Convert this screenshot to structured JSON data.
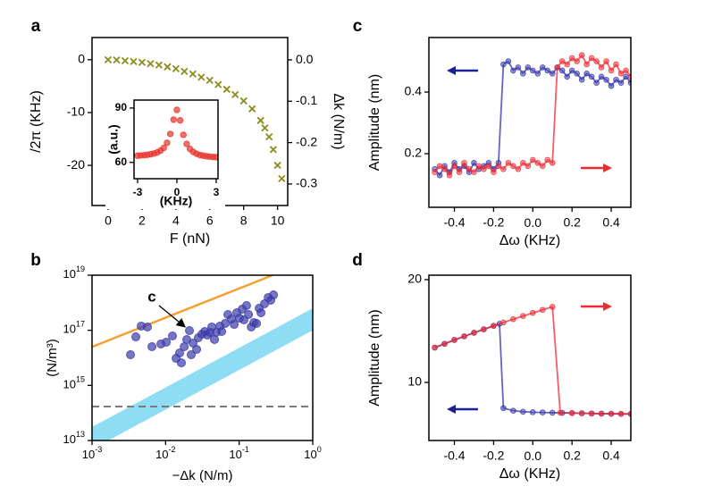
{
  "chart_data": [
    {
      "type": "scatter",
      "label": "a",
      "xlabel": "F (nN)",
      "ylabel": "/2π (KHz)",
      "y2label": "Δk (N/m)",
      "xlim": [
        -0.95,
        10.6
      ],
      "xticks": [
        0,
        2,
        4,
        6,
        8,
        10
      ],
      "ylim": [
        -27.6,
        4.2
      ],
      "yticks": [
        -20,
        -10,
        0
      ],
      "y2lim": [
        -0.352,
        0.054
      ],
      "y2ticks": [
        {
          "value": 0,
          "label": "0.0"
        },
        -0.1,
        -0.2,
        -0.3
      ],
      "series": [
        {
          "color": "#8c8c1e",
          "marker": "x",
          "x": [
            0,
            0.5,
            1,
            1.5,
            2,
            2.5,
            3,
            3.5,
            4,
            4.5,
            5,
            5.5,
            6,
            6.5,
            7,
            7.5,
            8,
            8.5,
            9,
            9.25,
            9.5,
            9.75,
            10,
            10.25
          ],
          "values": [
            0,
            -0.05,
            -0.2,
            -0.35,
            -0.5,
            -0.75,
            -1,
            -1.35,
            -1.7,
            -2.2,
            -2.7,
            -3.3,
            -3.9,
            -4.7,
            -5.6,
            -6.6,
            -7.8,
            -9.3,
            -11.5,
            -12.9,
            -14.6,
            -17,
            -20,
            -22.5
          ]
        }
      ]
    },
    {
      "type": "scatter",
      "xlabel": "(KHz)",
      "ylabel": "(a.u.)",
      "xlim": [
        -3.27,
        3.14
      ],
      "xticks": [
        -3,
        0,
        3
      ],
      "ylim": [
        51,
        94.4
      ],
      "yticks": [
        60,
        90
      ],
      "series": [
        {
          "color": "#e8332c",
          "marker": "circle",
          "x": [
            -3,
            -2.75,
            -2.5,
            -2.25,
            -2,
            -1.75,
            -1.5,
            -1.25,
            -1,
            -0.75,
            -0.5,
            -0.25,
            0,
            0.25,
            0.5,
            0.75,
            1,
            1.25,
            1.5,
            1.75,
            2,
            2.25,
            2.5,
            2.75,
            3
          ],
          "values": [
            63.7,
            63.8,
            64.0,
            64.2,
            64.5,
            64.9,
            65.5,
            66.5,
            68.0,
            70.8,
            75.7,
            83.6,
            89,
            83.2,
            75.2,
            70.2,
            67.4,
            65.8,
            64.8,
            64.1,
            63.7,
            63.4,
            63.2,
            63.0,
            62.9
          ]
        }
      ]
    },
    {
      "type": "scatter",
      "label": "b",
      "xlabel": "−Δk (N/m)",
      "ylabel": "(N/m³)",
      "xlog": true,
      "ylog": true,
      "xlim": [
        0.001,
        1
      ],
      "xticks": [
        {
          "value": 0.001,
          "label": "10",
          "exponent": "-3"
        },
        {
          "value": 0.01,
          "label": "10",
          "exponent": "-2"
        },
        {
          "value": 0.1,
          "label": "10",
          "exponent": "-1"
        },
        {
          "value": 1,
          "label": "10",
          "exponent": "0"
        }
      ],
      "ylim": [
        10000000000000.0,
        1e+19
      ],
      "yticks": [
        {
          "value": 10000000000000.0,
          "label": "10",
          "exponent": "13"
        },
        {
          "value": 1000000000000000.0,
          "label": "10",
          "exponent": "15"
        },
        {
          "value": 1e+17,
          "label": "10",
          "exponent": "17"
        },
        {
          "value": 1e+19,
          "label": "10",
          "exponent": "19"
        }
      ],
      "band": {
        "color": "#8fdcf5",
        "x": [
          0.001,
          1
        ],
        "upper": [
          31000000000000.0,
          6.3e+17
        ],
        "lower": [
          4800000000000.0,
          1e+17
        ]
      },
      "fit_line": {
        "color": "#f5a030",
        "x": [
          0.001,
          0.285
        ],
        "values": [
          2.5e+16,
          1e+19
        ]
      },
      "hline": {
        "color": "#7a7a7a",
        "value": 170000000000000.0
      },
      "annotation": {
        "text": "c"
      },
      "series": [
        {
          "color": "#3c3caa",
          "marker": "circle",
          "x": [
            0.00333,
            0.00394,
            0.00466,
            0.00566,
            0.00652,
            0.00863,
            0.0102,
            0.0124,
            0.0139,
            0.0155,
            0.0164,
            0.0179,
            0.0194,
            0.0211,
            0.0223,
            0.0236,
            0.0264,
            0.0279,
            0.0312,
            0.034,
            0.0369,
            0.0402,
            0.0425,
            0.0462,
            0.0489,
            0.0547,
            0.0578,
            0.0646,
            0.0703,
            0.0785,
            0.0855,
            0.0929,
            0.101,
            0.11,
            0.116,
            0.126,
            0.134,
            0.146,
            0.158,
            0.172,
            0.187,
            0.198,
            0.221,
            0.248,
            0.269,
            0.293
          ],
          "values": [
            1.3e+16,
            5.78e+16,
            1.42e+17,
            1.32e+17,
            2.54e+16,
            3.18e+16,
            3.69e+16,
            6.22e+16,
            9600000000000000.0,
            1.51e+16,
            6600000000000000.0,
            2.54e+16,
            4.62e+16,
            9.75e+16,
            1.3e+16,
            3.43e+16,
            2.03e+16,
            5.36e+16,
            7.23e+16,
            9.06e+16,
            6.71e+16,
            8.4e+16,
            1.32e+17,
            4.62e+16,
            8.4e+16,
            1.42e+17,
            9.06e+16,
            1.77e+17,
            3.74e+17,
            2.58e+17,
            1.64e+17,
            4.34e+17,
            2.77e+17,
            5.85e+17,
            2.39e+17,
            7.89e+17,
            3.74e+17,
            1.32e+17,
            1.91e+17,
            1.77e+17,
            6.31e+17,
            4.34e+17,
            9.16e+17,
            1.55e+18,
            1.24e+18,
            1.93e+18
          ]
        }
      ]
    },
    {
      "type": "line",
      "label": "c",
      "xlabel": "Δω (KHz)",
      "ylabel": "Amplitude (nm)",
      "xlim": [
        -0.53,
        0.5
      ],
      "xticks": [
        -0.4,
        -0.2,
        {
          "value": 0,
          "label": "0.0"
        },
        0.2,
        0.4
      ],
      "ylim": [
        0.026,
        0.577
      ],
      "yticks": [
        0.2,
        0.4
      ],
      "x": [
        -0.5,
        -0.475,
        -0.45,
        -0.425,
        -0.4,
        -0.375,
        -0.35,
        -0.325,
        -0.3,
        -0.275,
        -0.25,
        -0.225,
        -0.2,
        -0.175,
        -0.15,
        -0.125,
        -0.1,
        -0.075,
        -0.05,
        -0.025,
        0,
        0.025,
        0.05,
        0.075,
        0.1,
        0.125,
        0.15,
        0.175,
        0.2,
        0.225,
        0.25,
        0.275,
        0.3,
        0.325,
        0.35,
        0.375,
        0.4,
        0.425,
        0.45,
        0.475,
        0.5
      ],
      "series": [
        {
          "color": "#3333aa",
          "values": [
            0.15,
            0.13,
            0.16,
            0.14,
            0.17,
            0.15,
            0.16,
            0.14,
            0.17,
            0.15,
            0.16,
            0.17,
            0.15,
            0.17,
            0.49,
            0.5,
            0.47,
            0.48,
            0.46,
            0.48,
            0.47,
            0.46,
            0.48,
            0.47,
            0.46,
            0.48,
            0.47,
            0.45,
            0.47,
            0.46,
            0.44,
            0.46,
            0.45,
            0.43,
            0.45,
            0.44,
            0.42,
            0.44,
            0.43,
            0.45,
            0.43
          ]
        },
        {
          "color": "#ee2a33",
          "values": [
            0.14,
            0.16,
            0.15,
            0.13,
            0.16,
            0.14,
            0.17,
            0.15,
            0.14,
            0.16,
            0.15,
            0.16,
            0.14,
            0.16,
            0.15,
            0.17,
            0.16,
            0.15,
            0.17,
            0.16,
            0.18,
            0.17,
            0.16,
            0.18,
            0.17,
            0.48,
            0.5,
            0.49,
            0.51,
            0.5,
            0.52,
            0.49,
            0.51,
            0.5,
            0.48,
            0.5,
            0.47,
            0.49,
            0.46,
            0.47,
            0.45
          ]
        }
      ]
    },
    {
      "type": "line",
      "label": "d",
      "xlabel": "Δω (KHz)",
      "ylabel": "Amplitude (nm)",
      "xlim": [
        -0.53,
        0.5
      ],
      "xticks": [
        -0.4,
        -0.2,
        {
          "value": 0,
          "label": "0.0"
        },
        0.2,
        0.4
      ],
      "ylim": [
        4.35,
        20.43
      ],
      "yticks": [
        10,
        20
      ],
      "series": [
        {
          "color": "#3333aa",
          "x": [
            0.5,
            0.45,
            0.4,
            0.35,
            0.3,
            0.25,
            0.2,
            0.15,
            0.1,
            0.05,
            0,
            -0.05,
            -0.1,
            -0.15,
            -0.17,
            -0.2,
            -0.25,
            -0.3,
            -0.35,
            -0.4,
            -0.45,
            -0.5
          ],
          "values": [
            6.93,
            6.94,
            6.95,
            6.96,
            6.98,
            7.0,
            7.02,
            7.04,
            7.05,
            7.08,
            7.1,
            7.15,
            7.25,
            7.5,
            15.7,
            15.5,
            15.17,
            14.83,
            14.48,
            14.13,
            13.76,
            13.39
          ]
        },
        {
          "color": "#ee2a33",
          "x": [
            -0.5,
            -0.45,
            -0.4,
            -0.35,
            -0.3,
            -0.25,
            -0.2,
            -0.15,
            -0.1,
            -0.05,
            0,
            0.05,
            0.1,
            0.14,
            0.2,
            0.25,
            0.3,
            0.35,
            0.4,
            0.45,
            0.5
          ],
          "values": [
            13.39,
            13.76,
            14.13,
            14.48,
            14.83,
            15.17,
            15.5,
            15.83,
            16.15,
            16.46,
            16.76,
            17.06,
            17.35,
            7.05,
            7.02,
            7.0,
            6.98,
            6.96,
            6.95,
            6.94,
            6.93
          ]
        }
      ]
    }
  ]
}
